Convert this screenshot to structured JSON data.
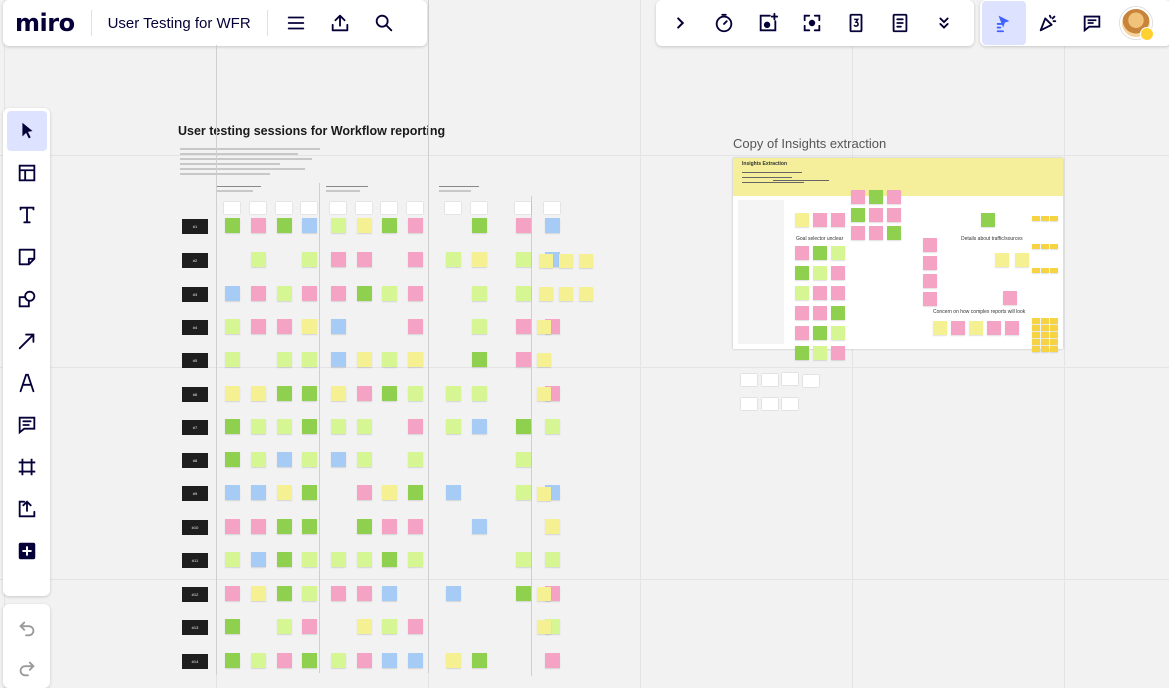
{
  "app": {
    "logo": "miro",
    "board_title": "User Testing for WFR"
  },
  "toolbar_top_left": [
    {
      "name": "menu-icon",
      "label": "Menu"
    },
    {
      "name": "upload-icon",
      "label": "Export"
    },
    {
      "name": "search-icon",
      "label": "Search"
    }
  ],
  "toolbar_top_center": [
    {
      "name": "chevron-right-icon"
    },
    {
      "name": "timer-icon"
    },
    {
      "name": "add-card-icon"
    },
    {
      "name": "focus-icon"
    },
    {
      "name": "number-three-icon"
    },
    {
      "name": "notes-icon"
    },
    {
      "name": "chevrons-down-icon"
    }
  ],
  "toolbar_top_right": [
    {
      "name": "cursor-share-icon",
      "active": true
    },
    {
      "name": "reactions-icon"
    },
    {
      "name": "comments-icon"
    }
  ],
  "left_tools": [
    {
      "name": "select-tool-icon",
      "active": true
    },
    {
      "name": "templates-icon"
    },
    {
      "name": "text-tool-icon"
    },
    {
      "name": "sticky-note-icon"
    },
    {
      "name": "shapes-icon"
    },
    {
      "name": "arrow-tool-icon"
    },
    {
      "name": "pen-tool-icon"
    },
    {
      "name": "comment-tool-icon"
    },
    {
      "name": "frame-tool-icon"
    },
    {
      "name": "upload-tool-icon"
    },
    {
      "name": "more-apps-icon"
    }
  ],
  "undo_tools": [
    {
      "name": "undo-icon"
    },
    {
      "name": "redo-icon"
    }
  ],
  "canvas": {
    "sessions_title": "User testing sessions for Workflow reporting",
    "row_labels": [
      "#1",
      "#2",
      "#3",
      "#4",
      "#5",
      "#6",
      "#7",
      "#8",
      "#9",
      "#10",
      "#11",
      "#12",
      "#13",
      "#14"
    ],
    "copy_title": "Copy of Insights extraction",
    "insights": {
      "header": "Insights Extraction",
      "cluster_titles": [
        "Goal selector unclear",
        "Details about traffic/sources",
        "Concern on how complex reports will look"
      ]
    }
  },
  "colors": {
    "accent": "#4262ff",
    "green": "#8fd14f",
    "pink": "#f4a3c4",
    "lime": "#d5f692",
    "yellow": "#f5f193",
    "blue": "#a6ccf5",
    "dark": "#1e1e1e"
  }
}
